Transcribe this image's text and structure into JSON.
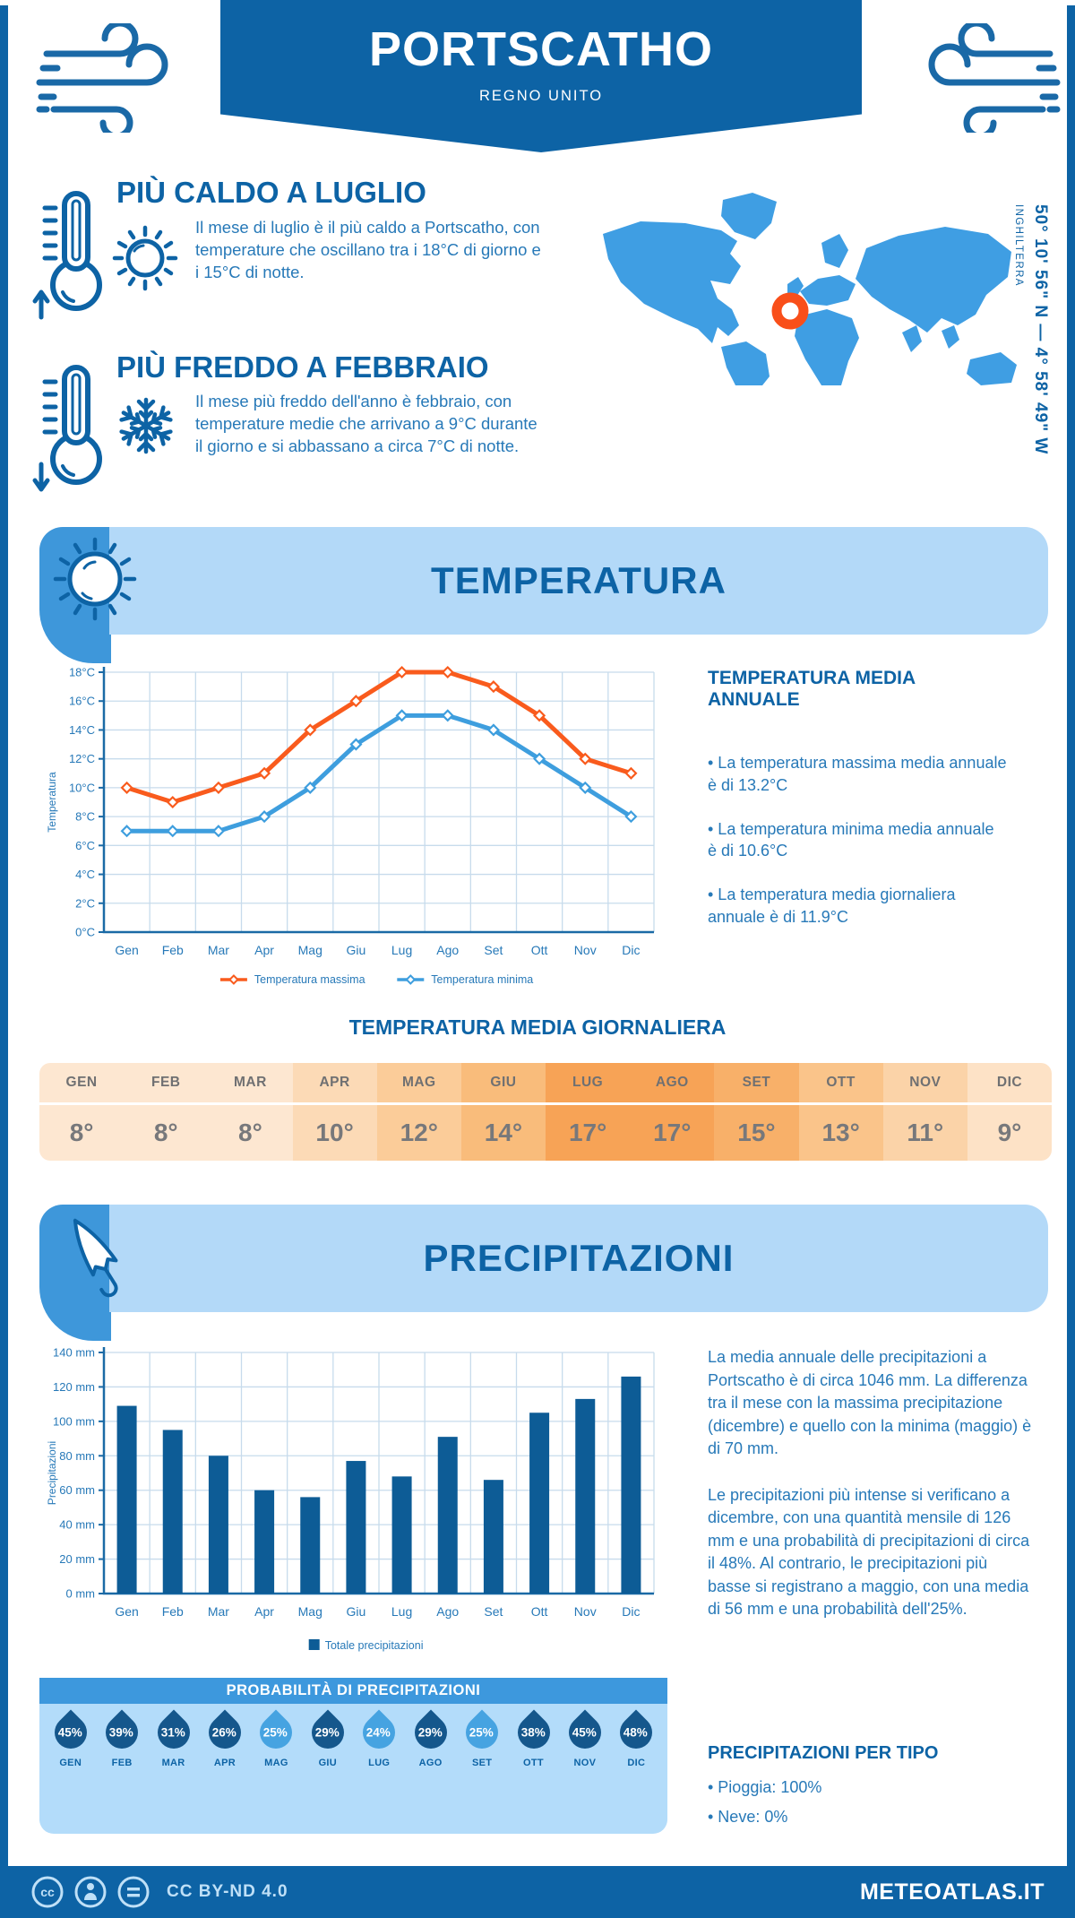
{
  "header": {
    "title": "PORTSCATHO",
    "subtitle": "REGNO UNITO"
  },
  "location": {
    "coordinates": "50° 10' 56\" N — 4° 58' 49\" W",
    "region": "INGHILTERRA"
  },
  "highlights": {
    "warm": {
      "title": "PIÙ CALDO A LUGLIO",
      "text": "Il mese di luglio è il più caldo a Portscatho, con temperature che oscillano tra i 18°C di giorno e i 15°C di notte."
    },
    "cold": {
      "title": "PIÙ FREDDO A FEBBRAIO",
      "text": "Il mese più freddo dell'anno è febbraio, con temperature medie che arrivano a 9°C durante il giorno e si abbassano a circa 7°C di notte."
    }
  },
  "temperature_section": {
    "title": "TEMPERATURA",
    "annual": {
      "heading": "TEMPERATURA MEDIA ANNUALE",
      "bullets": [
        "• La temperatura massima media annuale è di 13.2°C",
        "• La temperatura minima media annuale è di 10.6°C",
        "• La temperatura media giornaliera annuale è di 11.9°C"
      ]
    },
    "daily": {
      "heading": "TEMPERATURA MEDIA GIORNALIERA",
      "months": [
        "GEN",
        "FEB",
        "MAR",
        "APR",
        "MAG",
        "GIU",
        "LUG",
        "AGO",
        "SET",
        "OTT",
        "NOV",
        "DIC"
      ],
      "values": [
        "8°",
        "8°",
        "8°",
        "10°",
        "12°",
        "14°",
        "17°",
        "17°",
        "15°",
        "13°",
        "11°",
        "9°"
      ],
      "cell_colors": [
        "#fde7d1",
        "#fde7d1",
        "#fde7d1",
        "#fcdab6",
        "#fbcc99",
        "#f9bc7b",
        "#f7a356",
        "#f7a356",
        "#f8b069",
        "#fac48a",
        "#fbd3a8",
        "#fde2c6"
      ]
    }
  },
  "precipitation_section": {
    "title": "PRECIPITAZIONI",
    "paragraphs": [
      "La media annuale delle precipitazioni a Portscatho è di circa 1046 mm. La differenza tra il mese con la massima precipitazione (dicembre) e quello con la minima (maggio) è di 70 mm.",
      "Le precipitazioni più intense si verificano a dicembre, con una quantità mensile di 126 mm e una probabilità di precipitazioni di circa il 48%. Al contrario, le precipitazioni più basse si registrano a maggio, con una media di 56 mm e una probabilità dell'25%."
    ],
    "probability": {
      "heading": "PROBABILITÀ DI PRECIPITAZIONI",
      "months": [
        "GEN",
        "FEB",
        "MAR",
        "APR",
        "MAG",
        "GIU",
        "LUG",
        "AGO",
        "SET",
        "OTT",
        "NOV",
        "DIC"
      ],
      "values": [
        45,
        39,
        31,
        26,
        25,
        29,
        24,
        29,
        25,
        38,
        45,
        48
      ],
      "light_flags": [
        false,
        false,
        false,
        false,
        true,
        false,
        true,
        false,
        true,
        false,
        false,
        false
      ]
    },
    "by_type": {
      "heading": "PRECIPITAZIONI PER TIPO",
      "items": [
        "• Pioggia: 100%",
        "• Neve: 0%"
      ]
    }
  },
  "footer": {
    "license": "CC BY-ND 4.0",
    "brand": "METEOATLAS.IT"
  },
  "chart_data": [
    {
      "type": "line",
      "categories": [
        "Gen",
        "Feb",
        "Mar",
        "Apr",
        "Mag",
        "Giu",
        "Lug",
        "Ago",
        "Set",
        "Ott",
        "Nov",
        "Dic"
      ],
      "series": [
        {
          "name": "Temperatura massima",
          "color": "#f95b1d",
          "values": [
            10,
            9,
            10,
            11,
            14,
            16,
            18,
            18,
            17,
            15,
            12,
            11
          ]
        },
        {
          "name": "Temperatura minima",
          "color": "#3e9ede",
          "values": [
            7,
            7,
            7,
            8,
            10,
            13,
            15,
            15,
            14,
            12,
            10,
            8
          ]
        }
      ],
      "ylabel": "Temperatura",
      "ytick_suffix": "°C",
      "ylim": [
        0,
        18
      ],
      "ytick_step": 2,
      "grid": true,
      "legend_position": "bottom"
    },
    {
      "type": "bar",
      "categories": [
        "Gen",
        "Feb",
        "Mar",
        "Apr",
        "Mag",
        "Giu",
        "Lug",
        "Ago",
        "Set",
        "Ott",
        "Nov",
        "Dic"
      ],
      "series": [
        {
          "name": "Totale precipitazioni",
          "color": "#0d5c96",
          "values": [
            109,
            95,
            80,
            60,
            56,
            77,
            68,
            91,
            66,
            105,
            113,
            126
          ]
        }
      ],
      "ylabel": "Precipitazioni",
      "ytick_suffix": " mm",
      "ylim": [
        0,
        140
      ],
      "ytick_step": 20,
      "grid": true,
      "legend_position": "bottom"
    }
  ],
  "colors": {
    "primary": "#0d63a5",
    "body_text": "#2779b8",
    "banner_light": "#b3d9f8",
    "banner_tab": "#3e97da",
    "map_blue": "#3f9ee3",
    "marker_orange": "#f94f1a",
    "grid": "#c7dbec",
    "axis": "#1a6aa6",
    "drop_dark": "#15578c",
    "drop_light": "#46a3e1",
    "prob_header": "#3d98dd",
    "prob_panel": "#b3dcfa",
    "footer_text": "#bfe0f7"
  }
}
